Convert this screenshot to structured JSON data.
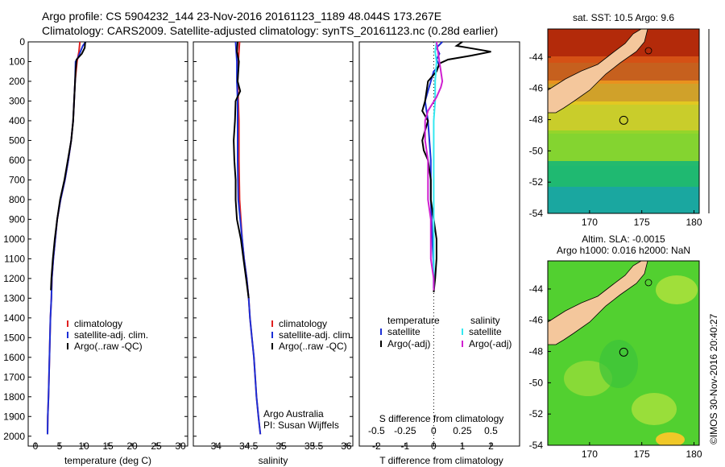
{
  "title": {
    "line1": "Argo profile: CS 5904232_144 23-Nov-2016 20161123_1189 48.044S 173.267E",
    "line2": "Climatology: CARS2009. Satellite-adjusted climatology: synTS_20161123.nc (0.28d earlier)"
  },
  "colors": {
    "clim": "#e02020",
    "sat": "#1c2fd6",
    "argo": "#000000",
    "sat_sal": "#33e8f0",
    "argo_sal": "#d020d0"
  },
  "credit": {
    "line1": "Argo Australia",
    "line2": "PI: Susan Wijffels"
  },
  "imos": "©IMOS 30-Nov-2016 20:40:27",
  "chart_data": [
    {
      "type": "line",
      "name": "temperature",
      "xlabel": "temperature (deg C)",
      "ylabel": "",
      "xlim": [
        -1.5,
        31.5
      ],
      "ylim": [
        2050,
        0
      ],
      "xticks": [
        "0",
        "5",
        "10",
        "15",
        "20",
        "25",
        "30"
      ],
      "yticks": [
        "0",
        "100",
        "200",
        "300",
        "400",
        "500",
        "600",
        "700",
        "800",
        "900",
        "1000",
        "1100",
        "1200",
        "1300",
        "1400",
        "1500",
        "1600",
        "1700",
        "1800",
        "1900",
        "2000"
      ],
      "legend": [
        "climatology",
        "satellite-adj. clim.",
        "Argo(..raw -QC)"
      ],
      "series": [
        {
          "name": "climatology",
          "color_key": "clim",
          "points": [
            [
              9.2,
              0
            ],
            [
              9.0,
              50
            ],
            [
              8.6,
              100
            ],
            [
              8.2,
              200
            ],
            [
              8.0,
              300
            ],
            [
              7.8,
              400
            ],
            [
              7.4,
              500
            ],
            [
              6.8,
              600
            ],
            [
              6.1,
              700
            ],
            [
              5.2,
              800
            ],
            [
              4.5,
              900
            ],
            [
              4.1,
              1000
            ],
            [
              3.7,
              1100
            ],
            [
              3.4,
              1200
            ],
            [
              3.3,
              1300
            ],
            [
              3.1,
              1400
            ],
            [
              3.0,
              1500
            ],
            [
              2.9,
              1600
            ],
            [
              2.8,
              1700
            ],
            [
              2.7,
              1800
            ],
            [
              2.55,
              1900
            ],
            [
              2.5,
              1990
            ]
          ]
        },
        {
          "name": "satellite-adj. clim.",
          "color_key": "sat",
          "points": [
            [
              10.4,
              0
            ],
            [
              9.8,
              20
            ],
            [
              9.3,
              50
            ],
            [
              8.8,
              80
            ],
            [
              8.3,
              100
            ],
            [
              8.2,
              200
            ],
            [
              8.0,
              300
            ],
            [
              7.8,
              400
            ],
            [
              7.4,
              500
            ],
            [
              6.8,
              600
            ],
            [
              6.1,
              700
            ],
            [
              5.2,
              800
            ],
            [
              4.5,
              900
            ],
            [
              4.1,
              1000
            ],
            [
              3.7,
              1100
            ],
            [
              3.4,
              1200
            ],
            [
              3.3,
              1300
            ],
            [
              3.1,
              1400
            ],
            [
              3.0,
              1500
            ],
            [
              2.9,
              1600
            ],
            [
              2.8,
              1700
            ],
            [
              2.7,
              1800
            ],
            [
              2.55,
              1900
            ],
            [
              2.5,
              1990
            ]
          ]
        },
        {
          "name": "Argo(..raw -QC)",
          "color_key": "argo",
          "points": [
            [
              10.3,
              0
            ],
            [
              10.2,
              30
            ],
            [
              9.6,
              60
            ],
            [
              8.5,
              90
            ],
            [
              8.3,
              150
            ],
            [
              8.2,
              200
            ],
            [
              8.0,
              300
            ],
            [
              7.8,
              400
            ],
            [
              7.4,
              500
            ],
            [
              6.7,
              600
            ],
            [
              6.0,
              700
            ],
            [
              5.1,
              800
            ],
            [
              4.5,
              900
            ],
            [
              4.0,
              1000
            ],
            [
              3.6,
              1100
            ],
            [
              3.3,
              1200
            ],
            [
              3.2,
              1260
            ]
          ]
        }
      ]
    },
    {
      "type": "line",
      "name": "salinity",
      "xlabel": "salinity",
      "ylabel": "",
      "xlim": [
        33.65,
        36.1
      ],
      "ylim": [
        2050,
        0
      ],
      "xticks": [
        "34",
        "34.5",
        "35",
        "35.5",
        "36"
      ],
      "legend": [
        "climatology",
        "satellite-adj. clim.",
        "Argo(..raw -QC)"
      ],
      "series": [
        {
          "name": "climatology",
          "color_key": "clim",
          "points": [
            [
              34.36,
              0
            ],
            [
              34.34,
              100
            ],
            [
              34.33,
              200
            ],
            [
              34.34,
              300
            ],
            [
              34.35,
              400
            ],
            [
              34.35,
              600
            ],
            [
              34.36,
              800
            ],
            [
              34.38,
              900
            ],
            [
              34.4,
              1000
            ],
            [
              34.43,
              1100
            ],
            [
              34.47,
              1200
            ],
            [
              34.5,
              1300
            ],
            [
              34.52,
              1400
            ],
            [
              34.55,
              1500
            ],
            [
              34.58,
              1600
            ],
            [
              34.6,
              1700
            ],
            [
              34.62,
              1800
            ],
            [
              34.65,
              1900
            ],
            [
              34.68,
              1990
            ]
          ]
        },
        {
          "name": "satellite-adj. clim.",
          "color_key": "sat",
          "points": [
            [
              34.3,
              0
            ],
            [
              34.32,
              100
            ],
            [
              34.32,
              200
            ],
            [
              34.33,
              300
            ],
            [
              34.33,
              400
            ],
            [
              34.33,
              600
            ],
            [
              34.34,
              800
            ],
            [
              34.37,
              900
            ],
            [
              34.4,
              1000
            ],
            [
              34.43,
              1100
            ],
            [
              34.47,
              1200
            ],
            [
              34.5,
              1300
            ],
            [
              34.52,
              1400
            ],
            [
              34.55,
              1500
            ],
            [
              34.58,
              1600
            ],
            [
              34.6,
              1700
            ],
            [
              34.62,
              1800
            ],
            [
              34.65,
              1900
            ],
            [
              34.68,
              1990
            ]
          ]
        },
        {
          "name": "Argo(..raw -QC)",
          "color_key": "argo",
          "points": [
            [
              34.33,
              0
            ],
            [
              34.32,
              50
            ],
            [
              34.35,
              100
            ],
            [
              34.33,
              200
            ],
            [
              34.37,
              250
            ],
            [
              34.3,
              300
            ],
            [
              34.29,
              400
            ],
            [
              34.27,
              500
            ],
            [
              34.28,
              600
            ],
            [
              34.3,
              700
            ],
            [
              34.3,
              800
            ],
            [
              34.32,
              900
            ],
            [
              34.38,
              1000
            ],
            [
              34.42,
              1100
            ],
            [
              34.46,
              1200
            ],
            [
              34.5,
              1300
            ]
          ]
        }
      ]
    },
    {
      "type": "line",
      "name": "differences",
      "xlabel": "T difference from climatology",
      "xlabel_top": "S difference from climatology",
      "xlim": [
        -2.6,
        3.0
      ],
      "ylim": [
        2050,
        0
      ],
      "xticks": [
        "-2",
        "-1",
        "0",
        "1",
        "2"
      ],
      "xticks_top": [
        "-0.5",
        "-0.25",
        "0",
        "0.25",
        "0.5"
      ],
      "legend_headers": [
        "temperature",
        "salinity"
      ],
      "legend": [
        "satellite",
        "Argo(-adj)",
        "satellite",
        "Argo(-adj)"
      ],
      "series": [
        {
          "name": "T satellite",
          "color_key": "sat",
          "points": [
            [
              0.3,
              0
            ],
            [
              0.1,
              30
            ],
            [
              0.2,
              60
            ],
            [
              0.1,
              90
            ],
            [
              0.2,
              120
            ],
            [
              0.0,
              150
            ],
            [
              -0.1,
              200
            ],
            [
              -0.3,
              300
            ],
            [
              -0.2,
              400
            ],
            [
              -0.1,
              600
            ],
            [
              -0.1,
              800
            ],
            [
              -0.05,
              1000
            ],
            [
              0,
              1150
            ],
            [
              0,
              1250
            ]
          ]
        },
        {
          "name": "T Argo(-adj)",
          "color_key": "argo",
          "points": [
            [
              1.0,
              0
            ],
            [
              0.8,
              20
            ],
            [
              1.2,
              30
            ],
            [
              2.0,
              50
            ],
            [
              1.3,
              70
            ],
            [
              0.5,
              90
            ],
            [
              0.2,
              110
            ],
            [
              0.1,
              150
            ],
            [
              -0.2,
              200
            ],
            [
              -0.3,
              300
            ],
            [
              -0.4,
              350
            ],
            [
              -0.2,
              400
            ],
            [
              -0.3,
              450
            ],
            [
              -0.4,
              500
            ],
            [
              -0.35,
              550
            ],
            [
              -0.2,
              600
            ],
            [
              -0.1,
              700
            ],
            [
              -0.1,
              800
            ],
            [
              0.0,
              900
            ],
            [
              0.1,
              1000
            ],
            [
              0.1,
              1100
            ],
            [
              0.05,
              1200
            ],
            [
              0.0,
              1270
            ]
          ]
        },
        {
          "name": "S satellite",
          "color_key": "sat_sal",
          "points": [
            [
              0.1,
              0
            ],
            [
              0.05,
              50
            ],
            [
              0.1,
              100
            ],
            [
              0.05,
              200
            ],
            [
              0.05,
              300
            ],
            [
              0,
              400
            ],
            [
              0,
              500
            ],
            [
              0,
              600
            ],
            [
              0,
              700
            ],
            [
              0,
              800
            ],
            [
              0,
              900
            ],
            [
              0,
              1000
            ],
            [
              0,
              1100
            ],
            [
              0,
              1200
            ],
            [
              0,
              1250
            ]
          ]
        },
        {
          "name": "S Argo(-adj)",
          "color_key": "argo_sal",
          "points": [
            [
              0.1,
              0
            ],
            [
              0.2,
              100
            ],
            [
              0.3,
              200
            ],
            [
              0.25,
              230
            ],
            [
              0.1,
              280
            ],
            [
              -0.2,
              350
            ],
            [
              -0.3,
              400
            ],
            [
              -0.3,
              500
            ],
            [
              -0.2,
              600
            ],
            [
              -0.2,
              700
            ],
            [
              -0.2,
              800
            ],
            [
              -0.1,
              900
            ],
            [
              -0.1,
              1000
            ],
            [
              -0.1,
              1100
            ],
            [
              0,
              1200
            ],
            [
              0,
              1260
            ]
          ]
        }
      ]
    },
    {
      "type": "heatmap",
      "name": "sst_map",
      "title": "sat. SST: 10.5 Argo: 9.6",
      "xlim": [
        166,
        180.5
      ],
      "ylim": [
        -54,
        -42.2
      ],
      "xticks": [
        "170",
        "175",
        "180"
      ],
      "yticks": [
        "-44",
        "-46",
        "-48",
        "-50",
        "-52",
        "-54"
      ],
      "argo_position": [
        173.27,
        -48.04
      ]
    },
    {
      "type": "heatmap",
      "name": "sla_map",
      "title_line1": "Altim. SLA: -0.0015",
      "title_line2": "Argo h1000: 0.016 h2000: NaN",
      "xlim": [
        166,
        180.5
      ],
      "ylim": [
        -54,
        -42.2
      ],
      "xticks": [
        "170",
        "175",
        "180"
      ],
      "yticks": [
        "-44",
        "-46",
        "-48",
        "-50",
        "-52",
        "-54"
      ],
      "argo_position": [
        173.27,
        -48.04
      ]
    }
  ]
}
